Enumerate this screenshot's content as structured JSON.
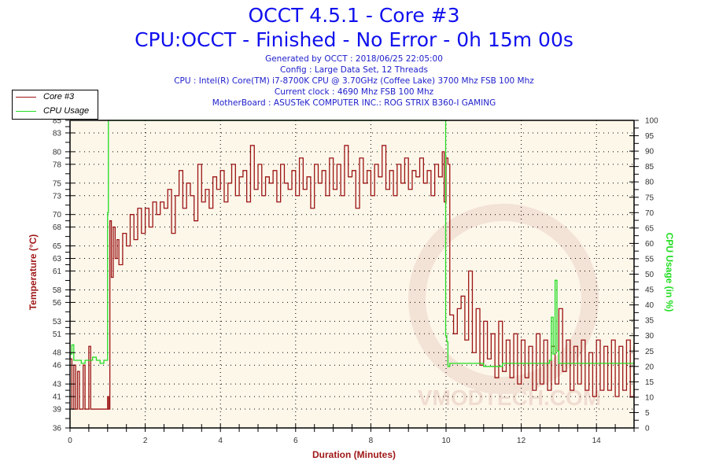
{
  "header": {
    "title": "OCCT 4.5.1 - Core #3",
    "subtitle": "CPU:OCCT - Finished - No Error - 0h 15m 00s",
    "info_lines": [
      "Generated by OCCT : 2018/06/25 22:05:00",
      "Config : Large Data Set, 12 Threads",
      "CPU : Intel(R) Core(TM) i7-8700K CPU @ 3.70GHz (Coffee Lake) 3700 Mhz FSB 100 Mhz",
      "Current clock : 4690 Mhz FSB 100 Mhz",
      "MotherBoard : ASUSTeK COMPUTER INC.: ROG STRIX B360-I GAMING"
    ]
  },
  "legend": {
    "items": [
      {
        "label": "Core #3",
        "color": "#9b1414"
      },
      {
        "label": "CPU Usage",
        "color": "#22dd22"
      }
    ]
  },
  "watermark": "VMODTECH.COM",
  "colors": {
    "plot_bg": "#fdf7ea",
    "temp_line": "#9b1414",
    "cpu_line": "#22dd22",
    "title": "#1010ee",
    "axis_label_left": "#a01818",
    "axis_label_right": "#22dd22"
  },
  "chart_data": {
    "type": "line",
    "title": "OCCT 4.5.1 - Core #3",
    "subtitle": "CPU:OCCT - Finished - No Error - 0h 15m 00s",
    "xlabel": "Duration (Minutes)",
    "ylabel": "Temperature (°C)",
    "y2label": "CPU Usage (in %)",
    "xlim": [
      0,
      15
    ],
    "ylim": [
      36,
      85
    ],
    "y2lim": [
      0,
      100
    ],
    "x_ticks": [
      0,
      2,
      4,
      6,
      8,
      10,
      12,
      14
    ],
    "y_ticks": [
      36,
      39,
      41,
      43,
      46,
      48,
      51,
      53,
      56,
      58,
      61,
      63,
      65,
      68,
      70,
      73,
      75,
      78,
      80,
      83,
      85
    ],
    "y2_ticks": [
      0,
      5,
      10,
      15,
      20,
      25,
      30,
      35,
      40,
      45,
      50,
      55,
      60,
      65,
      70,
      75,
      80,
      85,
      90,
      95,
      100
    ],
    "grid": true,
    "legend_position": "top-left",
    "series": [
      {
        "name": "Core #3",
        "axis": "left",
        "x": [
          0,
          0.05,
          0.1,
          0.15,
          0.2,
          0.25,
          0.3,
          0.35,
          0.4,
          0.45,
          0.5,
          0.55,
          0.6,
          0.65,
          0.7,
          0.75,
          0.8,
          0.85,
          0.9,
          0.95,
          1.0,
          1.03,
          1.06,
          1.1,
          1.15,
          1.2,
          1.25,
          1.3,
          1.4,
          1.5,
          1.6,
          1.7,
          1.8,
          1.9,
          2.0,
          2.1,
          2.2,
          2.3,
          2.4,
          2.5,
          2.6,
          2.7,
          2.8,
          2.9,
          3.0,
          3.1,
          3.2,
          3.3,
          3.4,
          3.5,
          3.6,
          3.7,
          3.8,
          3.9,
          4.0,
          4.1,
          4.2,
          4.3,
          4.4,
          4.5,
          4.6,
          4.7,
          4.8,
          4.9,
          5.0,
          5.1,
          5.2,
          5.3,
          5.4,
          5.5,
          5.6,
          5.7,
          5.8,
          5.9,
          6.0,
          6.1,
          6.2,
          6.3,
          6.4,
          6.5,
          6.6,
          6.7,
          6.8,
          6.9,
          7.0,
          7.1,
          7.2,
          7.3,
          7.4,
          7.5,
          7.6,
          7.7,
          7.8,
          7.9,
          8.0,
          8.1,
          8.2,
          8.3,
          8.4,
          8.5,
          8.6,
          8.7,
          8.8,
          8.9,
          9.0,
          9.1,
          9.2,
          9.3,
          9.4,
          9.5,
          9.6,
          9.7,
          9.8,
          9.9,
          9.95,
          10.0,
          10.05,
          10.1,
          10.2,
          10.3,
          10.4,
          10.5,
          10.6,
          10.7,
          10.8,
          10.9,
          11.0,
          11.1,
          11.2,
          11.3,
          11.4,
          11.5,
          11.6,
          11.7,
          11.8,
          11.9,
          12.0,
          12.1,
          12.2,
          12.3,
          12.4,
          12.5,
          12.6,
          12.7,
          12.8,
          12.9,
          13.0,
          13.1,
          13.2,
          13.3,
          13.4,
          13.5,
          13.6,
          13.7,
          13.8,
          13.9,
          14.0,
          14.1,
          14.2,
          14.3,
          14.4,
          14.5,
          14.6,
          14.7,
          14.8,
          14.9,
          15.0
        ],
        "values": [
          47,
          39,
          46,
          39,
          45,
          39,
          39,
          46,
          39,
          39,
          49,
          39,
          39,
          39,
          39,
          39,
          39,
          39,
          39,
          39,
          41,
          39,
          69,
          60,
          68,
          63,
          66,
          62,
          67,
          65,
          70,
          66,
          71,
          67,
          71,
          68,
          72,
          70,
          72,
          71,
          74,
          67,
          73,
          77,
          71,
          75,
          73,
          69,
          78,
          72,
          74,
          71,
          76,
          74,
          77,
          72,
          75,
          78,
          73,
          76,
          77,
          72,
          81,
          74,
          78,
          73,
          76,
          75,
          77,
          72,
          78,
          75,
          74,
          77,
          73,
          79,
          74,
          76,
          71,
          78,
          75,
          77,
          73,
          79,
          74,
          78,
          73,
          81,
          76,
          77,
          71,
          79,
          75,
          77,
          73,
          78,
          76,
          81,
          74,
          77,
          73,
          78,
          75,
          79,
          74,
          77,
          76,
          79,
          75,
          77,
          73,
          78,
          76,
          80,
          72,
          79,
          78,
          54,
          51,
          55,
          57,
          50,
          61,
          48,
          55,
          46,
          53,
          47,
          51,
          44,
          53,
          45,
          50,
          44,
          51,
          43,
          50,
          44,
          49,
          42,
          51,
          43,
          50,
          42,
          49,
          43,
          55,
          45,
          50,
          42,
          49,
          43,
          50,
          42,
          48,
          41,
          50,
          42,
          49,
          42,
          50,
          41,
          49,
          42,
          50,
          41,
          49
        ]
      },
      {
        "name": "CPU Usage",
        "axis": "right",
        "x": [
          0,
          0.05,
          0.1,
          0.2,
          0.3,
          0.4,
          0.5,
          0.6,
          0.7,
          0.8,
          0.9,
          0.98,
          1.0,
          1.02,
          9.97,
          9.99,
          10.02,
          10.05,
          10.1,
          10.2,
          10.5,
          11.0,
          11.5,
          12.0,
          12.5,
          12.75,
          12.8,
          12.85,
          12.9,
          12.95,
          13.0,
          13.5,
          14.0,
          14.5,
          15.0
        ],
        "values": [
          24,
          27,
          22,
          22,
          21,
          22,
          22,
          23,
          22,
          21,
          22,
          22,
          70,
          100,
          100,
          30,
          28,
          20,
          21,
          21,
          21,
          20,
          21,
          21,
          21,
          22,
          36,
          24,
          48,
          25,
          21,
          21,
          21,
          21,
          21
        ]
      }
    ]
  }
}
